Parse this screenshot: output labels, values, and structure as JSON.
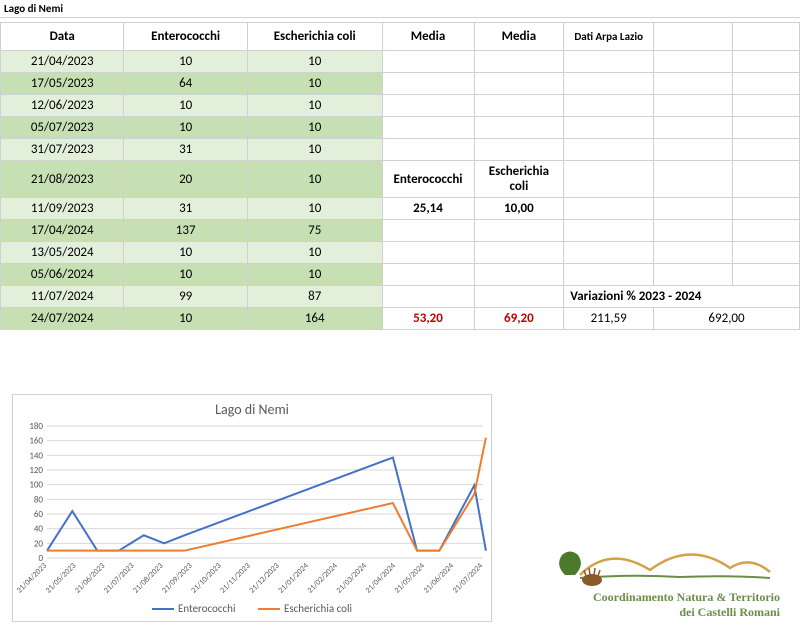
{
  "sheet_title": "Lago di Nemi",
  "headers": {
    "data": "Data",
    "enterococchi": "Enterococchi",
    "ecoli": "Escherichia coli",
    "media1": "Media",
    "media2": "Media",
    "arpa": "Dati Arpa Lazio"
  },
  "rows": [
    {
      "date": "21/04/2023",
      "ent": "10",
      "eco": "10"
    },
    {
      "date": "17/05/2023",
      "ent": "64",
      "eco": "10"
    },
    {
      "date": "12/06/2023",
      "ent": "10",
      "eco": "10"
    },
    {
      "date": "05/07/2023",
      "ent": "10",
      "eco": "10"
    },
    {
      "date": "31/07/2023",
      "ent": "31",
      "eco": "10"
    },
    {
      "date": "21/08/2023",
      "ent": "20",
      "eco": "10"
    },
    {
      "date": "11/09/2023",
      "ent": "31",
      "eco": "10"
    },
    {
      "date": "17/04/2024",
      "ent": "137",
      "eco": "75"
    },
    {
      "date": "13/05/2024",
      "ent": "10",
      "eco": "10"
    },
    {
      "date": "05/06/2024",
      "ent": "10",
      "eco": "10"
    },
    {
      "date": "11/07/2024",
      "ent": "99",
      "eco": "87"
    },
    {
      "date": "24/07/2024",
      "ent": "10",
      "eco": "164"
    }
  ],
  "labels": {
    "ent_label": "Enterococchi",
    "eco_label": "Escherichia coli",
    "var_label": "Variazioni % 2023 - 2024"
  },
  "media1": {
    "ent": "25,14",
    "eco": "10,00"
  },
  "media2": {
    "ent": "53,20",
    "eco": "69,20"
  },
  "variazioni": {
    "v1": "211,59",
    "v2": "692,00"
  },
  "chart": {
    "title": "Lago di Nemi",
    "ymax": 180,
    "ytick": 20,
    "x_labels": [
      "21/04/2023",
      "21/05/2023",
      "21/06/2023",
      "21/07/2023",
      "21/08/2023",
      "21/09/2023",
      "21/10/2023",
      "21/11/2023",
      "21/12/2023",
      "21/01/2024",
      "21/02/2024",
      "21/03/2024",
      "21/04/2024",
      "21/05/2024",
      "21/06/2024",
      "21/07/2024"
    ],
    "series": [
      {
        "name": "Enterococchi",
        "color": "#4472c4",
        "points": [
          [
            0,
            10
          ],
          [
            0.87,
            64
          ],
          [
            1.73,
            10
          ],
          [
            2.47,
            10
          ],
          [
            3.33,
            31
          ],
          [
            4.03,
            20
          ],
          [
            4.73,
            31
          ],
          [
            11.9,
            137
          ],
          [
            12.73,
            10
          ],
          [
            13.5,
            10
          ],
          [
            14.7,
            99
          ],
          [
            15.1,
            10
          ]
        ]
      },
      {
        "name": "Escherichia coli",
        "color": "#ed7d31",
        "points": [
          [
            0,
            10
          ],
          [
            0.87,
            10
          ],
          [
            1.73,
            10
          ],
          [
            2.47,
            10
          ],
          [
            3.33,
            10
          ],
          [
            4.03,
            10
          ],
          [
            4.73,
            10
          ],
          [
            11.9,
            75
          ],
          [
            12.73,
            10
          ],
          [
            13.5,
            10
          ],
          [
            14.7,
            87
          ],
          [
            15.1,
            164
          ]
        ]
      }
    ],
    "grid_color": "#d9d9d9",
    "axis_color": "#bfbfbf",
    "label_color": "#595959"
  },
  "logo": {
    "line1": "Coordinamento Natura & Territorio",
    "line2": "dei Castelli Romani"
  }
}
